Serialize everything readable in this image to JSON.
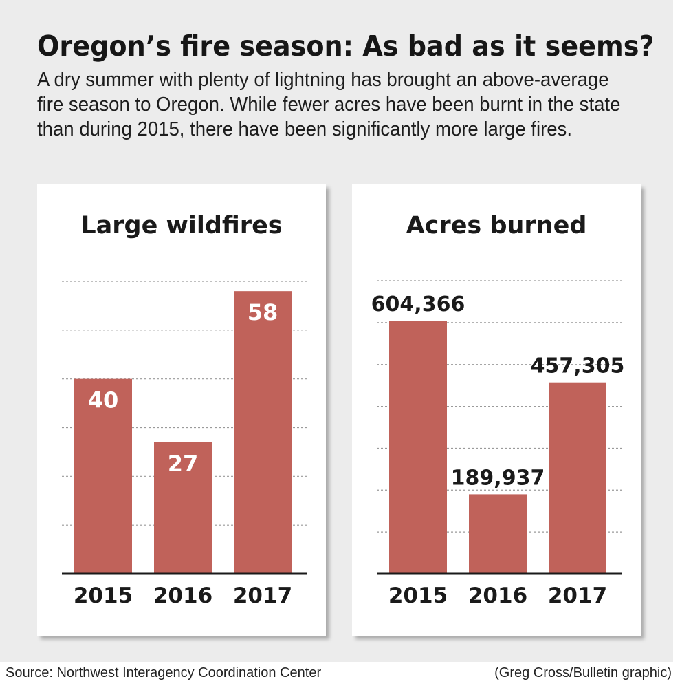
{
  "headline": "Oregon’s fire season: As bad as it seems?",
  "intro": "A dry summer with plenty of lightning has brought an above-average fire season to Oregon. While fewer acres have been burnt in the state than during 2015, there have been significantly more large fires.",
  "source": "Source: Northwest Interagency Coordination Center",
  "credit": "(Greg Cross/Bulletin graphic)",
  "colors": {
    "bar": "#c0625a",
    "background": "#ececec",
    "panel": "#ffffff",
    "label_inside": "#ffffff",
    "label_outside": "#1a1a1a"
  },
  "chart_data": [
    {
      "type": "bar",
      "title": "Large wildfires",
      "categories": [
        "2015",
        "2016",
        "2017"
      ],
      "values": [
        40,
        27,
        58
      ],
      "labels": [
        "40",
        "27",
        "58"
      ],
      "label_position": "inside",
      "ylim": [
        0,
        60
      ],
      "grid": true,
      "xlabel": "",
      "ylabel": ""
    },
    {
      "type": "bar",
      "title": "Acres burned",
      "categories": [
        "2015",
        "2016",
        "2017"
      ],
      "values": [
        604366,
        189937,
        457305
      ],
      "labels": [
        "604,366",
        "189,937",
        "457,305"
      ],
      "label_position": "above",
      "ylim": [
        0,
        700000
      ],
      "grid": true,
      "xlabel": "",
      "ylabel": ""
    }
  ]
}
